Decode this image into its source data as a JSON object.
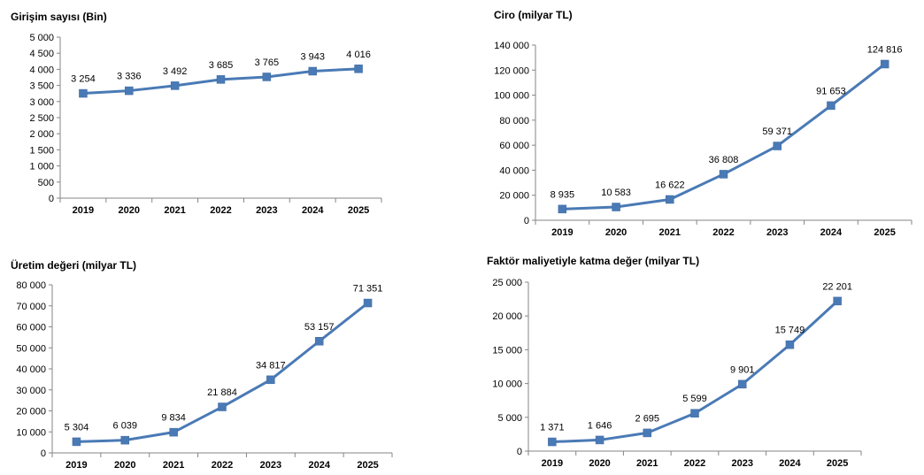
{
  "chart_data": [
    {
      "type": "line",
      "title": "Girişim sayısı (Bin)",
      "categories": [
        "2019",
        "2020",
        "2021",
        "2022",
        "2023",
        "2024",
        "2025"
      ],
      "values": [
        3254,
        3336,
        3492,
        3685,
        3765,
        3943,
        4016
      ],
      "value_labels": [
        "3 254",
        "3 336",
        "3 492",
        "3 685",
        "3 765",
        "3 943",
        "4 016"
      ],
      "ylim": [
        0,
        5000
      ],
      "yticks": [
        0,
        500,
        1000,
        1500,
        2000,
        2500,
        3000,
        3500,
        4000,
        4500,
        5000
      ],
      "ytick_labels": [
        "0",
        "500",
        "1 000",
        "1 500",
        "2 000",
        "2 500",
        "3 000",
        "3 500",
        "4 000",
        "4 500",
        "5 000"
      ],
      "grid": false,
      "color": "#4a7ab5"
    },
    {
      "type": "line",
      "title": "Ciro (milyar TL)",
      "categories": [
        "2019",
        "2020",
        "2021",
        "2022",
        "2023",
        "2024",
        "2025"
      ],
      "values": [
        8935,
        10583,
        16622,
        36808,
        59371,
        91653,
        124816
      ],
      "value_labels": [
        "8 935",
        "10 583",
        "16 622",
        "36 808",
        "59 371",
        "91 653",
        "124 816"
      ],
      "ylim": [
        0,
        140000
      ],
      "yticks": [
        0,
        20000,
        40000,
        60000,
        80000,
        100000,
        120000,
        140000
      ],
      "ytick_labels": [
        "0",
        "20 000",
        "40 000",
        "60 000",
        "80 000",
        "100 000",
        "120 000",
        "140 000"
      ],
      "grid": false,
      "color": "#4a7ab5"
    },
    {
      "type": "line",
      "title": "Üretim değeri (milyar TL)",
      "categories": [
        "2019",
        "2020",
        "2021",
        "2022",
        "2023",
        "2024",
        "2025"
      ],
      "values": [
        5304,
        6039,
        9834,
        21884,
        34817,
        53157,
        71351
      ],
      "value_labels": [
        "5 304",
        "6 039",
        "9 834",
        "21 884",
        "34 817",
        "53 157",
        "71 351"
      ],
      "ylim": [
        0,
        80000
      ],
      "yticks": [
        0,
        10000,
        20000,
        30000,
        40000,
        50000,
        60000,
        70000,
        80000
      ],
      "ytick_labels": [
        "0",
        "10 000",
        "20 000",
        "30 000",
        "40 000",
        "50 000",
        "60 000",
        "70 000",
        "80 000"
      ],
      "grid": false,
      "color": "#4a7ab5"
    },
    {
      "type": "line",
      "title": "Faktör maliyetiyle katma değer (milyar TL)",
      "categories": [
        "2019",
        "2020",
        "2021",
        "2022",
        "2023",
        "2024",
        "2025"
      ],
      "values": [
        1371,
        1646,
        2695,
        5599,
        9901,
        15749,
        22201
      ],
      "value_labels": [
        "1 371",
        "1 646",
        "2 695",
        "5 599",
        "9 901",
        "15 749",
        "22 201"
      ],
      "ylim": [
        0,
        25000
      ],
      "yticks": [
        0,
        5000,
        10000,
        15000,
        20000,
        25000
      ],
      "ytick_labels": [
        "0",
        "5 000",
        "10 000",
        "15 000",
        "20 000",
        "25 000"
      ],
      "grid": false,
      "color": "#4a7ab5"
    }
  ]
}
